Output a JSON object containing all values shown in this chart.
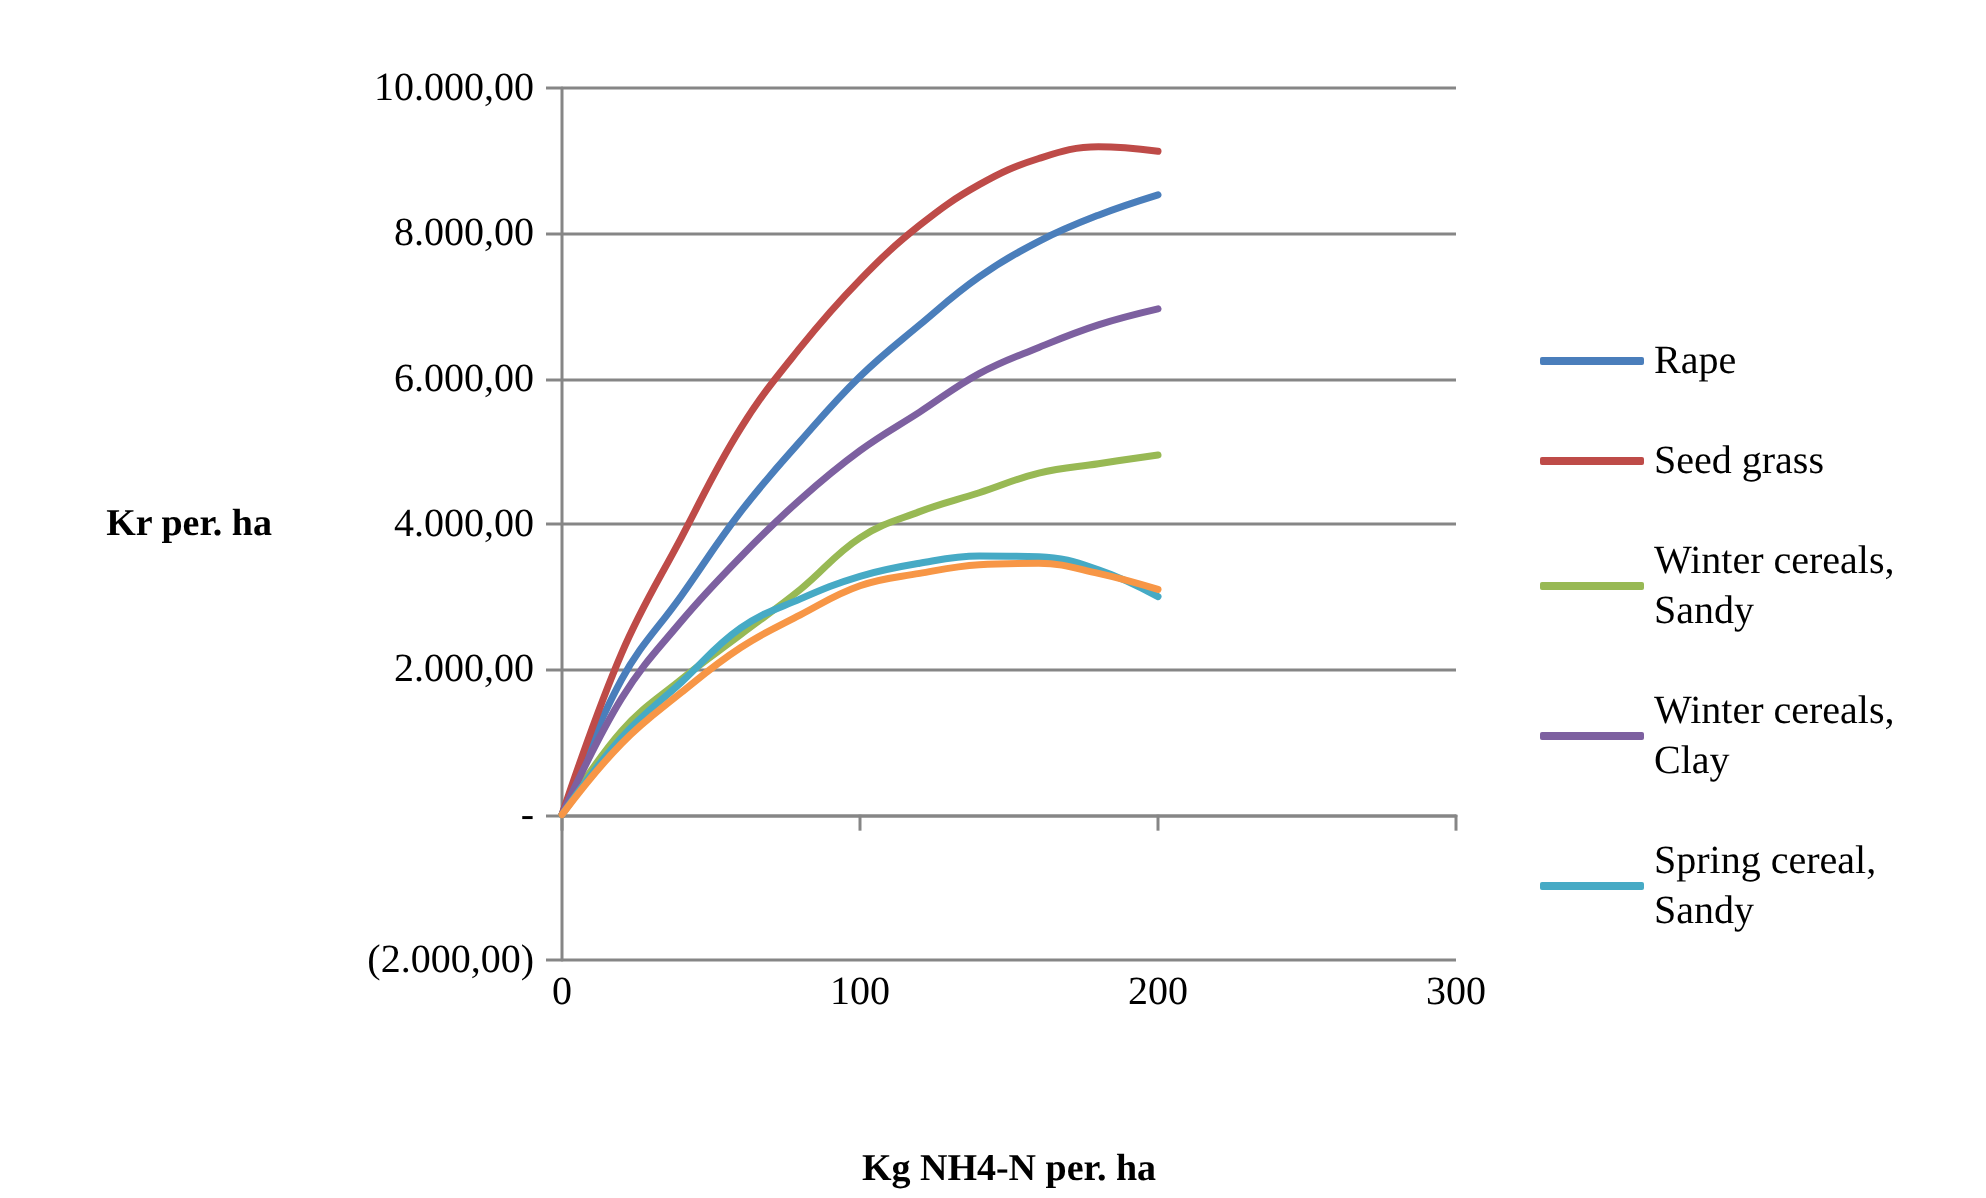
{
  "chart_data": {
    "type": "line",
    "xlabel": "Kg NH4-N per. ha",
    "ylabel": "Kr per. ha",
    "x": [
      0,
      20,
      40,
      60,
      80,
      100,
      120,
      140,
      160,
      180,
      200
    ],
    "series": [
      {
        "name": "Rape",
        "color": "#4a7ebb",
        "values": [
          0,
          1860,
          3010,
          4170,
          5140,
          6030,
          6740,
          7400,
          7890,
          8250,
          8530
        ]
      },
      {
        "name": "Seed grass",
        "color": "#be4b48",
        "values": [
          0,
          2220,
          3810,
          5320,
          6430,
          7360,
          8110,
          8670,
          9030,
          9190,
          9130
        ]
      },
      {
        "name": "Winter cereals, Sandy",
        "color": "#98b954",
        "values": [
          0,
          1150,
          1860,
          2480,
          3100,
          3810,
          4170,
          4430,
          4700,
          4830,
          4950
        ]
      },
      {
        "name": "Winter cereals, Clay",
        "color": "#7d60a0",
        "values": [
          0,
          1600,
          2660,
          3550,
          4340,
          5010,
          5540,
          6070,
          6430,
          6740,
          6960
        ]
      },
      {
        "name": "Spring cereal, Sandy",
        "color": "#46aac5",
        "values": [
          0,
          1060,
          1820,
          2570,
          2970,
          3280,
          3460,
          3560,
          3550,
          3370,
          3000
        ]
      },
      {
        "color": "#f79646",
        "values": [
          0,
          980,
          1680,
          2300,
          2750,
          3150,
          3320,
          3440,
          3460,
          3320,
          3100
        ]
      }
    ],
    "xlim": [
      0,
      300
    ],
    "xticks": [
      0,
      100,
      200,
      300
    ],
    "ylim": [
      -2000,
      10000
    ],
    "yticks": [
      {
        "value": -2000,
        "label": "(2.000,00)"
      },
      {
        "value": 0,
        "label": "-"
      },
      {
        "value": 2000,
        "label": "2.000,00"
      },
      {
        "value": 4000,
        "label": "4.000,00"
      },
      {
        "value": 6000,
        "label": "6.000,00"
      },
      {
        "value": 8000,
        "label": "8.000,00"
      },
      {
        "value": 10000,
        "label": "10.000,00"
      }
    ],
    "grid": "y",
    "legend": "right",
    "marker": "none",
    "line_style": "solid"
  }
}
